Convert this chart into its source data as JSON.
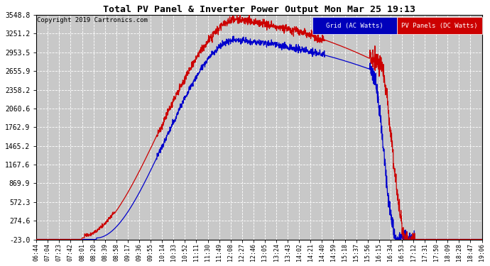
{
  "title": "Total PV Panel & Inverter Power Output Mon Mar 25 19:13",
  "copyright": "Copyright 2019 Cartronics.com",
  "legend_grid": "Grid (AC Watts)",
  "legend_pv": "PV Panels (DC Watts)",
  "legend_grid_bg": "#0000bb",
  "legend_pv_bg": "#cc0000",
  "grid_line_color": "#0000cc",
  "pv_line_color": "#cc0000",
  "bg_color": "#ffffff",
  "plot_bg_color": "#c8c8c8",
  "ytick_vals": [
    -23.0,
    274.6,
    572.3,
    869.9,
    1167.6,
    1465.2,
    1762.9,
    2060.6,
    2358.2,
    2655.9,
    2953.5,
    3251.2,
    3548.8
  ],
  "ymin": -23.0,
  "ymax": 3548.8,
  "xtick_labels": [
    "06:44",
    "07:04",
    "07:23",
    "07:42",
    "08:01",
    "08:20",
    "08:39",
    "08:58",
    "09:17",
    "09:36",
    "09:55",
    "10:14",
    "10:33",
    "10:52",
    "11:11",
    "11:30",
    "11:49",
    "12:08",
    "12:27",
    "12:46",
    "13:05",
    "13:24",
    "13:43",
    "14:02",
    "14:21",
    "14:40",
    "14:59",
    "15:18",
    "15:37",
    "15:56",
    "16:15",
    "16:34",
    "16:53",
    "17:12",
    "17:31",
    "17:50",
    "18:09",
    "18:28",
    "18:47",
    "19:06"
  ]
}
